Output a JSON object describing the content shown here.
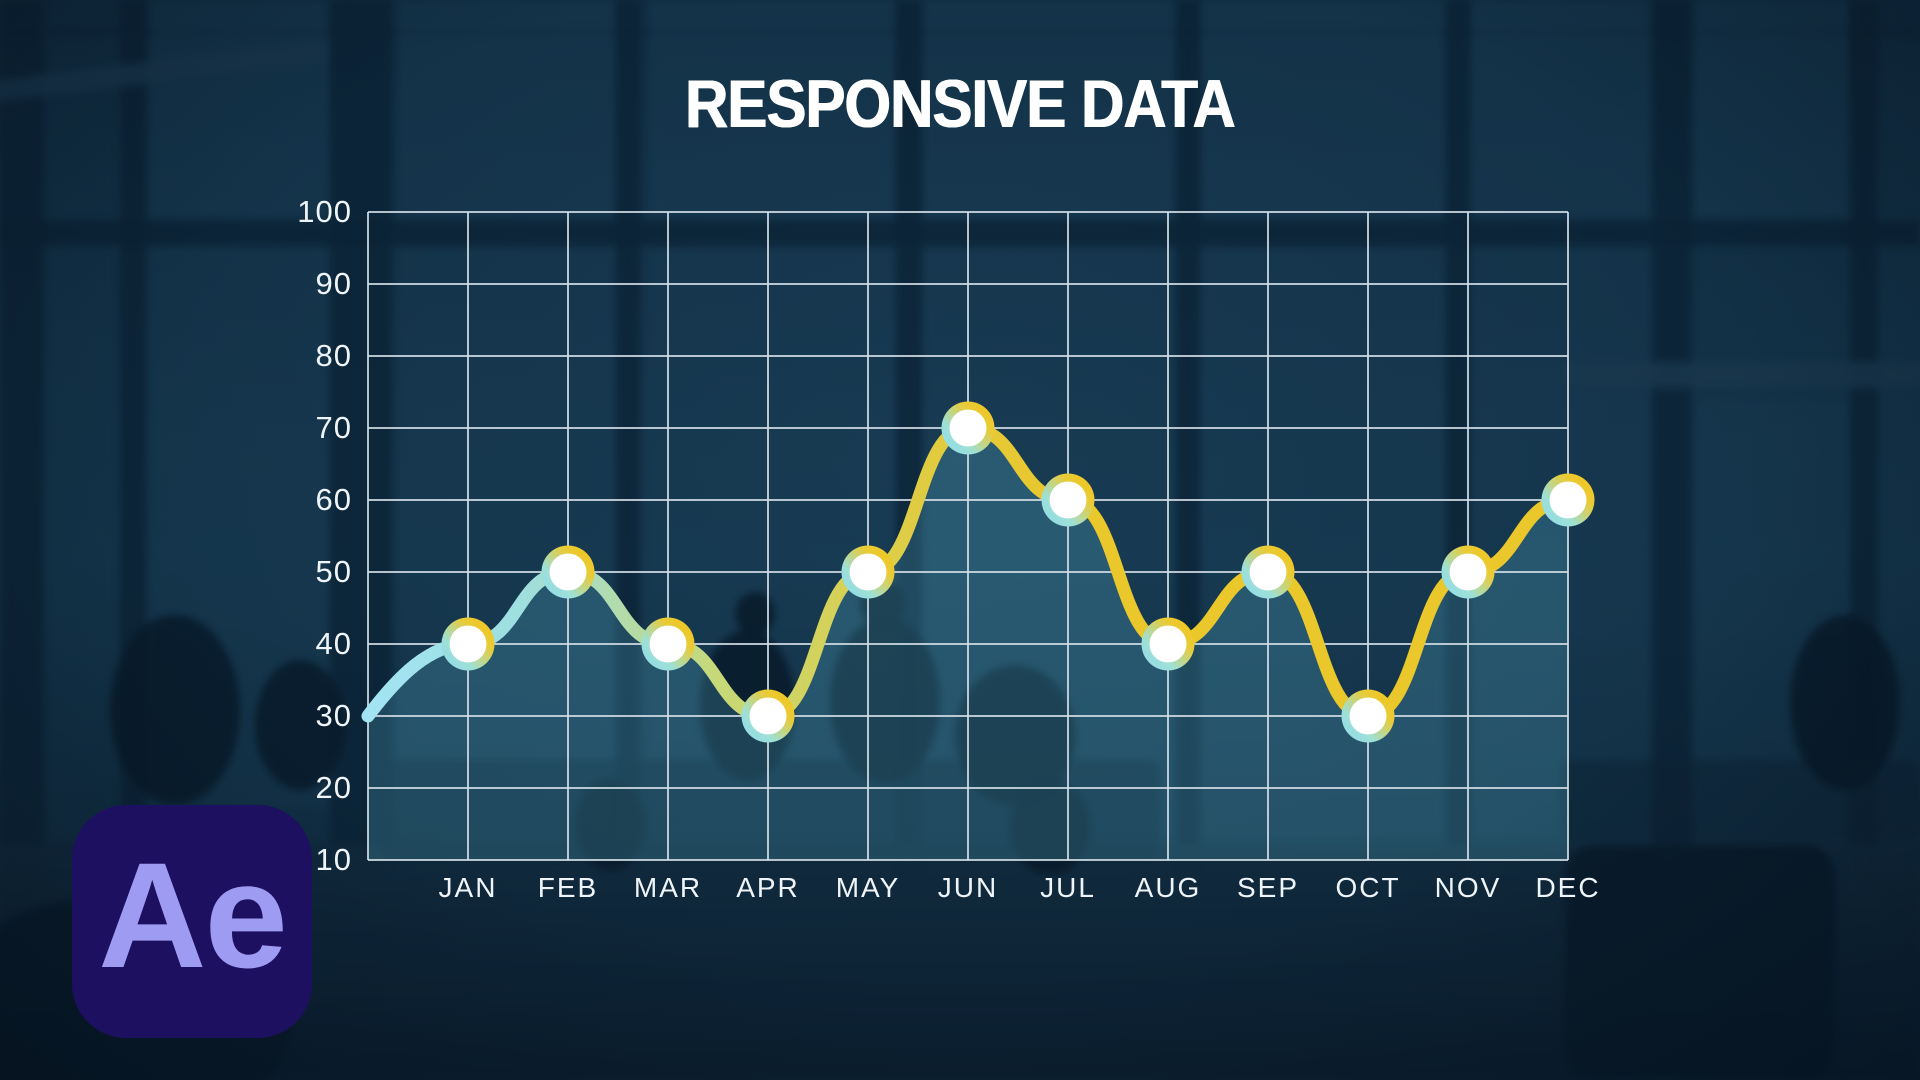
{
  "title": "RESPONSIVE DATA",
  "logo": {
    "label": "Ae",
    "background": "#1e1060",
    "color": "#9e9bf3"
  },
  "chart_data": {
    "type": "line",
    "title": "RESPONSIVE DATA",
    "categories": [
      "JAN",
      "FEB",
      "MAR",
      "APR",
      "MAY",
      "JUN",
      "JUL",
      "AUG",
      "SEP",
      "OCT",
      "NOV",
      "DEC"
    ],
    "values": [
      40,
      50,
      40,
      30,
      50,
      70,
      60,
      40,
      50,
      30,
      50,
      60
    ],
    "line_start_at_axis_value": 30,
    "y_ticks": [
      100,
      90,
      80,
      70,
      60,
      50,
      40,
      30,
      20,
      10
    ],
    "ylim": [
      10,
      100
    ],
    "xlabel": "",
    "ylabel": "",
    "grid": true,
    "legend": "none",
    "marker_style": "white circle with cyan-to-yellow gradient ring",
    "colors": {
      "grid": "#d3dfe7",
      "labels": "#eef4f7",
      "title": "#ffffff",
      "area_fill": "rgba(108,214,240,0.20)",
      "marker_fill": "#ffffff",
      "line_gradient": [
        [
          0,
          "#a2e4f2"
        ],
        [
          150,
          "#9edfe0"
        ],
        [
          350,
          "#c6d878"
        ],
        [
          550,
          "#e0cc42"
        ],
        [
          700,
          "#eac72a"
        ],
        [
          1200,
          "#eac72a"
        ]
      ],
      "marker_ring_gradient": [
        [
          0,
          "#8fdbee"
        ],
        [
          0.32,
          "#9de0d6"
        ],
        [
          0.68,
          "#e9cb36"
        ],
        [
          1,
          "#f4c318"
        ]
      ]
    }
  }
}
